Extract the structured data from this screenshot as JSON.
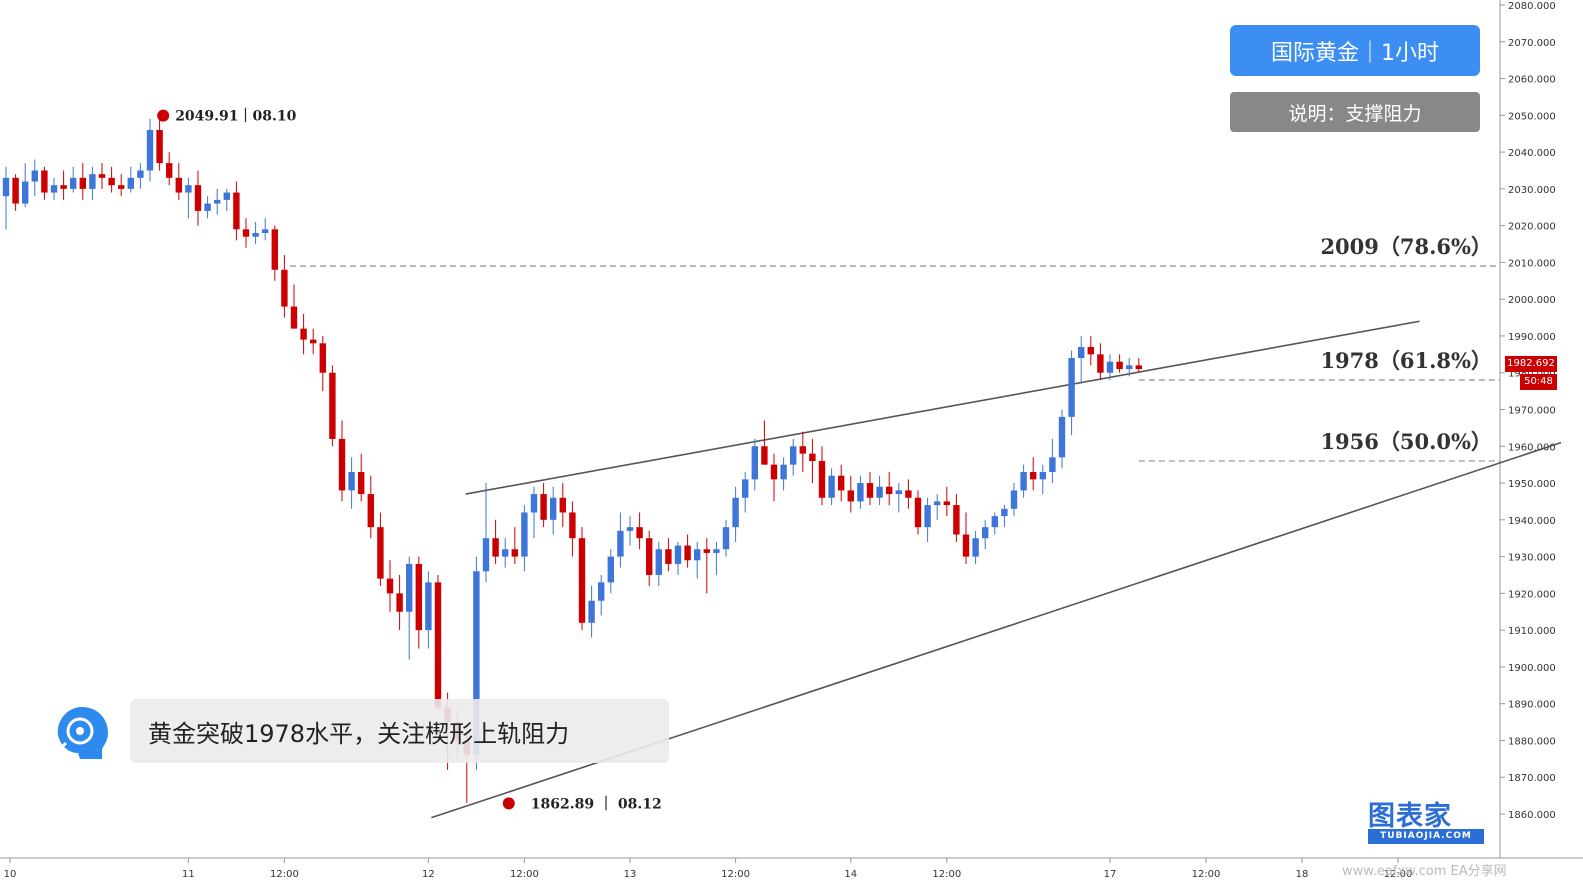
{
  "badge": {
    "title": "国际黄金｜1小时",
    "subtitle": "说明：支撑阻力"
  },
  "caption": "黄金突破1978水平，关注楔形上轨阻力",
  "brand": {
    "name": "图表家",
    "sub": "TUBIAOJIA.COM"
  },
  "watermark": "www.eafxw.com  EA分享网",
  "colors": {
    "up": "#3d75d9",
    "down": "#cc0000",
    "badge_title": "#3d8ef3",
    "badge_sub": "#888888",
    "brand": "#2b6fd6"
  },
  "chart_data": {
    "type": "candlestick",
    "title": "国际黄金｜1小时",
    "ylim": [
      1855,
      2082
    ],
    "y_ticks": [
      1860,
      1870,
      1880,
      1890,
      1900,
      1910,
      1920,
      1930,
      1940,
      1950,
      1960,
      1970,
      1980,
      1990,
      2000,
      2010,
      2020,
      2030,
      2040,
      2050,
      2060,
      2070,
      2080
    ],
    "y_tick_labels": [
      "1860.000",
      "1870.000",
      "1880.000",
      "1890.000",
      "1900.000",
      "1910.000",
      "1920.000",
      "1930.000",
      "1940.000",
      "1950.000",
      "1960.000",
      "1970.000",
      "1980.000",
      "1990.000",
      "2000.000",
      "2010.000",
      "2020.000",
      "2030.000",
      "2040.000",
      "2050.000",
      "2060.000",
      "2070.000",
      "2080.000"
    ],
    "x_tick_labels": [
      "10",
      "11",
      "12:00",
      "12",
      "12:00",
      "13",
      "12:00",
      "14",
      "12:00",
      "17",
      "12:00",
      "18",
      "12:00"
    ],
    "x_tick_bars": [
      0,
      19,
      29,
      44,
      54,
      65,
      76,
      88,
      98,
      115,
      125,
      135,
      145
    ],
    "levels": [
      {
        "price": 2009,
        "label": "2009（78.6%）"
      },
      {
        "price": 1978,
        "label": "1978（61.8%）"
      },
      {
        "price": 1956,
        "label": "1956（50.0%）"
      }
    ],
    "annotations": {
      "high": {
        "price": 2049.91,
        "label": "2049.91｜08.10",
        "bar": 17
      },
      "low": {
        "price": 1862.89,
        "label": "1862.89 ｜ 08.12",
        "bar": 53
      }
    },
    "current_price": "1982.692",
    "countdown": "50:48",
    "wedge": {
      "upper": [
        [
          51,
          1947
        ],
        [
          141,
          1994
        ]
      ],
      "lower": [
        [
          49,
          1859
        ],
        [
          150,
          1961
        ]
      ]
    },
    "candles": [
      [
        2028,
        2036,
        2019,
        2033
      ],
      [
        2033,
        2034,
        2024,
        2026
      ],
      [
        2026,
        2037,
        2025,
        2032
      ],
      [
        2032,
        2038,
        2028,
        2035
      ],
      [
        2035,
        2036,
        2027,
        2029
      ],
      [
        2029,
        2033,
        2027,
        2031
      ],
      [
        2031,
        2035,
        2027,
        2030
      ],
      [
        2030,
        2036,
        2029,
        2033
      ],
      [
        2033,
        2037,
        2027,
        2030
      ],
      [
        2030,
        2036,
        2027,
        2034
      ],
      [
        2034,
        2037,
        2030,
        2033
      ],
      [
        2033,
        2036,
        2029,
        2031
      ],
      [
        2031,
        2034,
        2028,
        2030
      ],
      [
        2030,
        2036,
        2029,
        2033
      ],
      [
        2033,
        2037,
        2030,
        2035
      ],
      [
        2035,
        2049,
        2032,
        2046
      ],
      [
        2046,
        2050,
        2035,
        2037
      ],
      [
        2037,
        2040,
        2031,
        2033
      ],
      [
        2033,
        2037,
        2027,
        2029
      ],
      [
        2029,
        2033,
        2022,
        2031
      ],
      [
        2031,
        2035,
        2020,
        2024
      ],
      [
        2024,
        2028,
        2022,
        2026
      ],
      [
        2026,
        2030,
        2023,
        2027
      ],
      [
        2027,
        2030,
        2024,
        2029
      ],
      [
        2029,
        2032,
        2016,
        2019
      ],
      [
        2019,
        2022,
        2014,
        2017
      ],
      [
        2017,
        2021,
        2015,
        2018
      ],
      [
        2018,
        2022,
        2016,
        2019
      ],
      [
        2019,
        2020,
        2005,
        2008
      ],
      [
        2008,
        2012,
        1995,
        1998
      ],
      [
        1998,
        2004,
        1992,
        1992
      ],
      [
        1992,
        1996,
        1985,
        1989
      ],
      [
        1989,
        1992,
        1985,
        1988
      ],
      [
        1988,
        1990,
        1975,
        1980
      ],
      [
        1980,
        1982,
        1960,
        1962
      ],
      [
        1962,
        1967,
        1945,
        1948
      ],
      [
        1948,
        1957,
        1943,
        1953
      ],
      [
        1953,
        1958,
        1945,
        1947
      ],
      [
        1947,
        1952,
        1935,
        1938
      ],
      [
        1938,
        1942,
        1922,
        1924
      ],
      [
        1924,
        1929,
        1915,
        1920
      ],
      [
        1920,
        1925,
        1910,
        1915
      ],
      [
        1915,
        1930,
        1902,
        1928
      ],
      [
        1928,
        1930,
        1905,
        1910
      ],
      [
        1910,
        1926,
        1905,
        1923
      ],
      [
        1923,
        1925,
        1888,
        1889
      ],
      [
        1889,
        1893,
        1872,
        1885
      ],
      [
        1885,
        1888,
        1875,
        1880
      ],
      [
        1880,
        1884,
        1863,
        1876
      ],
      [
        1876,
        1930,
        1872,
        1926
      ],
      [
        1926,
        1950,
        1923,
        1935
      ],
      [
        1935,
        1940,
        1928,
        1930
      ],
      [
        1930,
        1935,
        1927,
        1932
      ],
      [
        1932,
        1938,
        1928,
        1930
      ],
      [
        1930,
        1944,
        1926,
        1942
      ],
      [
        1942,
        1949,
        1935,
        1947
      ],
      [
        1947,
        1950,
        1938,
        1940
      ],
      [
        1940,
        1949,
        1936,
        1946
      ],
      [
        1946,
        1950,
        1938,
        1942
      ],
      [
        1942,
        1945,
        1930,
        1935
      ],
      [
        1935,
        1938,
        1910,
        1912
      ],
      [
        1912,
        1922,
        1908,
        1918
      ],
      [
        1918,
        1925,
        1914,
        1923
      ],
      [
        1923,
        1932,
        1920,
        1930
      ],
      [
        1930,
        1942,
        1927,
        1937
      ],
      [
        1937,
        1941,
        1933,
        1938
      ],
      [
        1938,
        1942,
        1932,
        1935
      ],
      [
        1935,
        1937,
        1922,
        1925
      ],
      [
        1925,
        1934,
        1922,
        1932
      ],
      [
        1932,
        1935,
        1926,
        1928
      ],
      [
        1928,
        1934,
        1925,
        1933
      ],
      [
        1933,
        1936,
        1927,
        1929
      ],
      [
        1929,
        1934,
        1924,
        1932
      ],
      [
        1932,
        1935,
        1920,
        1931
      ],
      [
        1931,
        1934,
        1925,
        1932
      ],
      [
        1932,
        1940,
        1930,
        1938
      ],
      [
        1938,
        1949,
        1934,
        1946
      ],
      [
        1946,
        1953,
        1942,
        1951
      ],
      [
        1951,
        1962,
        1948,
        1960
      ],
      [
        1960,
        1967,
        1955,
        1955
      ],
      [
        1955,
        1958,
        1945,
        1951
      ],
      [
        1951,
        1957,
        1948,
        1955
      ],
      [
        1955,
        1962,
        1952,
        1960
      ],
      [
        1960,
        1964,
        1953,
        1958
      ],
      [
        1958,
        1962,
        1950,
        1956
      ],
      [
        1956,
        1960,
        1944,
        1946
      ],
      [
        1946,
        1954,
        1944,
        1952
      ],
      [
        1952,
        1955,
        1945,
        1948
      ],
      [
        1948,
        1952,
        1942,
        1945
      ],
      [
        1945,
        1952,
        1943,
        1950
      ],
      [
        1950,
        1953,
        1944,
        1946
      ],
      [
        1946,
        1952,
        1944,
        1949
      ],
      [
        1949,
        1953,
        1944,
        1947
      ],
      [
        1947,
        1950,
        1942,
        1948
      ],
      [
        1948,
        1951,
        1943,
        1946
      ],
      [
        1946,
        1948,
        1936,
        1938
      ],
      [
        1938,
        1946,
        1934,
        1944
      ],
      [
        1944,
        1947,
        1940,
        1945
      ],
      [
        1945,
        1949,
        1941,
        1944
      ],
      [
        1944,
        1947,
        1934,
        1936
      ],
      [
        1936,
        1942,
        1928,
        1930
      ],
      [
        1930,
        1937,
        1928,
        1935
      ],
      [
        1935,
        1940,
        1932,
        1938
      ],
      [
        1938,
        1942,
        1936,
        1941
      ],
      [
        1941,
        1944,
        1938,
        1943
      ],
      [
        1943,
        1950,
        1941,
        1948
      ],
      [
        1948,
        1955,
        1946,
        1953
      ],
      [
        1953,
        1957,
        1948,
        1951
      ],
      [
        1951,
        1955,
        1947,
        1953
      ],
      [
        1953,
        1962,
        1950,
        1957
      ],
      [
        1957,
        1970,
        1954,
        1968
      ],
      [
        1968,
        1986,
        1963,
        1984
      ],
      [
        1984,
        1990,
        1977,
        1987
      ],
      [
        1987,
        1990,
        1982,
        1985
      ],
      [
        1985,
        1988,
        1978,
        1980
      ],
      [
        1980,
        1985,
        1978,
        1983
      ],
      [
        1983,
        1985,
        1980,
        1981
      ],
      [
        1981,
        1984,
        1979,
        1982
      ],
      [
        1982,
        1984,
        1980,
        1981
      ]
    ]
  }
}
